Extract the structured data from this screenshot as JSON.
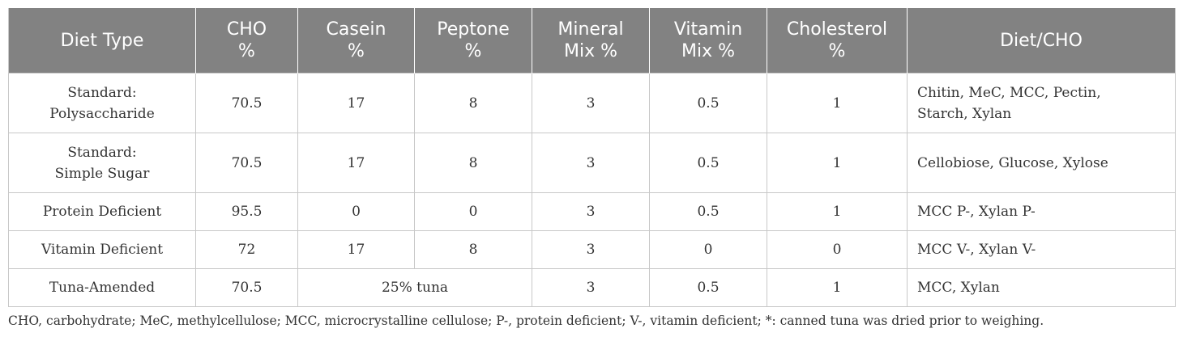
{
  "table": {
    "headers": [
      {
        "line1": "Diet Type",
        "line2": ""
      },
      {
        "line1": "CHO",
        "line2": "%"
      },
      {
        "line1": "Casein",
        "line2": "%"
      },
      {
        "line1": "Peptone",
        "line2": "%"
      },
      {
        "line1": "Mineral",
        "line2": "Mix %"
      },
      {
        "line1": "Vitamin",
        "line2": "Mix %"
      },
      {
        "line1": "Cholesterol",
        "line2": "%"
      },
      {
        "line1": "Diet/CHO",
        "line2": ""
      }
    ],
    "rows": [
      {
        "diet_line1": "Standard:",
        "diet_line2": "Polysaccharide",
        "cho": "70.5",
        "casein": "17",
        "peptone": "8",
        "mineral": "3",
        "vitamin": "0.5",
        "cholesterol": "1",
        "diet_cho_line1": "Chitin, MeC, MCC, Pectin,",
        "diet_cho_line2": "Starch, Xylan"
      },
      {
        "diet_line1": "Standard:",
        "diet_line2": "Simple Sugar",
        "cho": "70.5",
        "casein": "17",
        "peptone": "8",
        "mineral": "3",
        "vitamin": "0.5",
        "cholesterol": "1",
        "diet_cho_line1": "Cellobiose, Glucose, Xylose",
        "diet_cho_line2": ""
      },
      {
        "diet_line1": "Protein Deficient",
        "diet_line2": "",
        "cho": "95.5",
        "casein": "0",
        "peptone": "0",
        "mineral": "3",
        "vitamin": "0.5",
        "cholesterol": "1",
        "diet_cho_line1": "MCC P-, Xylan P-",
        "diet_cho_line2": ""
      },
      {
        "diet_line1": "Vitamin Deficient",
        "diet_line2": "",
        "cho": "72",
        "casein": "17",
        "peptone": "8",
        "mineral": "3",
        "vitamin": "0",
        "cholesterol": "0",
        "diet_cho_line1": "MCC V-, Xylan V-",
        "diet_cho_line2": ""
      },
      {
        "diet_line1": "Tuna-Amended",
        "diet_line2": "",
        "cho": "70.5",
        "casein_peptone_merged": "25% tuna",
        "mineral": "3",
        "vitamin": "0.5",
        "cholesterol": "1",
        "diet_cho_line1": "MCC, Xylan",
        "diet_cho_line2": ""
      }
    ]
  },
  "footnote": "CHO, carbohydrate; MeC, methylcellulose; MCC, microcrystalline cellulose; P-, protein deficient; V-, vitamin deficient; *: canned tuna was dried prior to weighing."
}
